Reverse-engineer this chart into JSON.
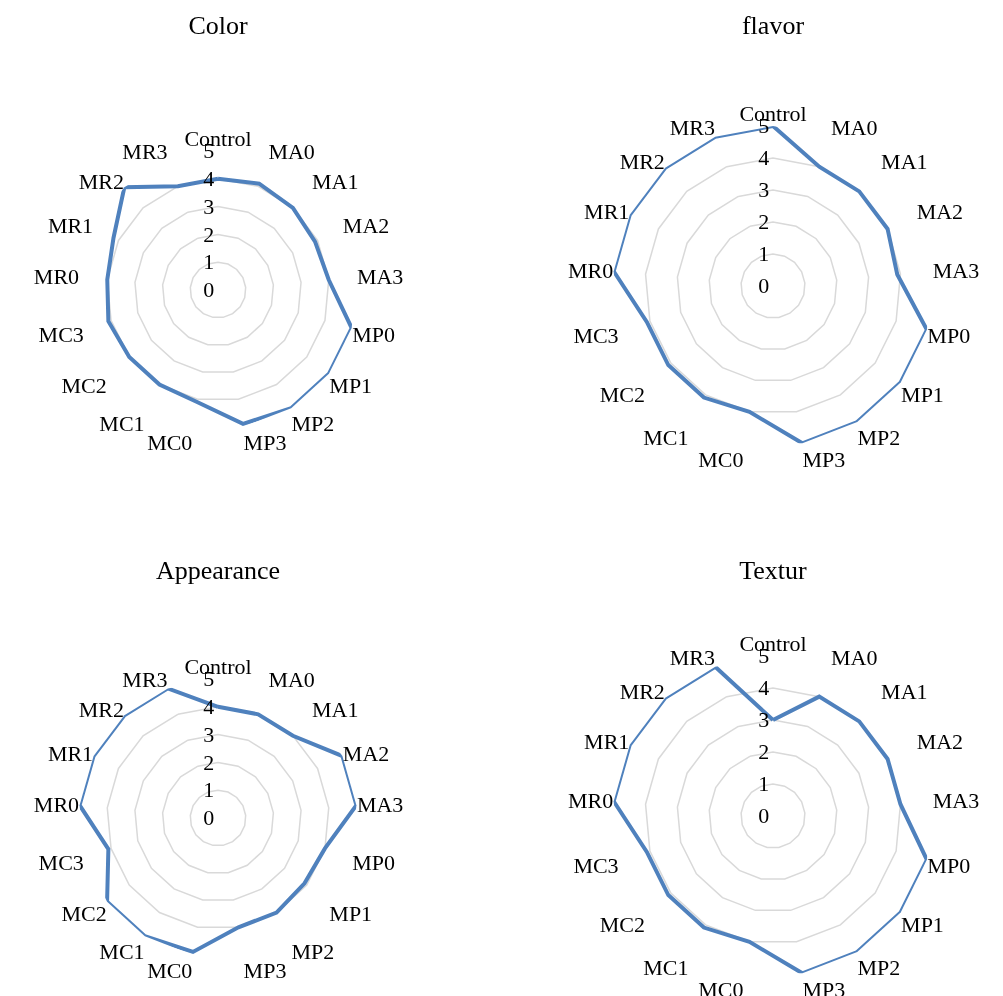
{
  "chart_data": [
    {
      "type": "radar",
      "title": "Color",
      "categories": [
        "Control",
        "MA0",
        "MA1",
        "MA2",
        "MA3",
        "MP0",
        "MP1",
        "MP2",
        "MP3",
        "MC0",
        "MC1",
        "MC2",
        "MC3",
        "MR0",
        "MR1",
        "MR2",
        "MR3"
      ],
      "ylim": [
        0,
        5
      ],
      "yticks": [
        0,
        1,
        2,
        3,
        4,
        5
      ],
      "grid": true,
      "series": [
        {
          "color": "#4f81bd",
          "values": [
            4.0,
            4.1,
            4.0,
            3.9,
            4.0,
            5.0,
            5.0,
            5.0,
            4.9,
            4.1,
            4.0,
            4.0,
            4.1,
            4.0,
            4.2,
            5.0,
            4.0
          ]
        }
      ]
    },
    {
      "type": "radar",
      "title": "flavor",
      "categories": [
        "Control",
        "MA0",
        "MA1",
        "MA2",
        "MA3",
        "MP0",
        "MP1",
        "MP2",
        "MP3",
        "MC0",
        "MC1",
        "MC2",
        "MC3",
        "MR0",
        "MR1",
        "MR2",
        "MR3"
      ],
      "ylim": [
        0,
        5
      ],
      "yticks": [
        0,
        1,
        2,
        3,
        4,
        5
      ],
      "grid": true,
      "series": [
        {
          "color": "#4f81bd",
          "values": [
            5.0,
            4.0,
            4.0,
            4.0,
            3.9,
            5.0,
            5.0,
            5.0,
            5.0,
            4.0,
            4.1,
            4.1,
            4.1,
            5.0,
            5.0,
            5.0,
            5.0
          ]
        }
      ]
    },
    {
      "type": "radar",
      "title": "Appearance",
      "categories": [
        "Control",
        "MA0",
        "MA1",
        "MA2",
        "MA3",
        "MP0",
        "MP1",
        "MP2",
        "MP3",
        "MC0",
        "MC1",
        "MC2",
        "MC3",
        "MR0",
        "MR1",
        "MR2",
        "MR3"
      ],
      "ylim": [
        0,
        5
      ],
      "yticks": [
        0,
        1,
        2,
        3,
        4,
        5
      ],
      "grid": true,
      "series": [
        {
          "color": "#4f81bd",
          "values": [
            4.0,
            4.0,
            4.0,
            5.0,
            5.0,
            4.0,
            3.9,
            4.0,
            4.0,
            4.9,
            5.0,
            5.0,
            4.1,
            5.0,
            5.0,
            5.0,
            5.0
          ]
        }
      ]
    },
    {
      "type": "radar",
      "title": "Textur",
      "categories": [
        "Control",
        "MA0",
        "MA1",
        "MA2",
        "MA3",
        "MP0",
        "MP1",
        "MP2",
        "MP3",
        "MC0",
        "MC1",
        "MC2",
        "MC3",
        "MR0",
        "MR1",
        "MR2",
        "MR3"
      ],
      "ylim": [
        0,
        5
      ],
      "yticks": [
        0,
        1,
        2,
        3,
        4,
        5
      ],
      "grid": true,
      "series": [
        {
          "color": "#4f81bd",
          "values": [
            3.0,
            4.0,
            4.0,
            4.0,
            4.0,
            5.0,
            5.0,
            5.0,
            5.0,
            4.0,
            4.1,
            4.1,
            4.1,
            5.0,
            5.0,
            5.0,
            5.0
          ]
        }
      ]
    }
  ]
}
